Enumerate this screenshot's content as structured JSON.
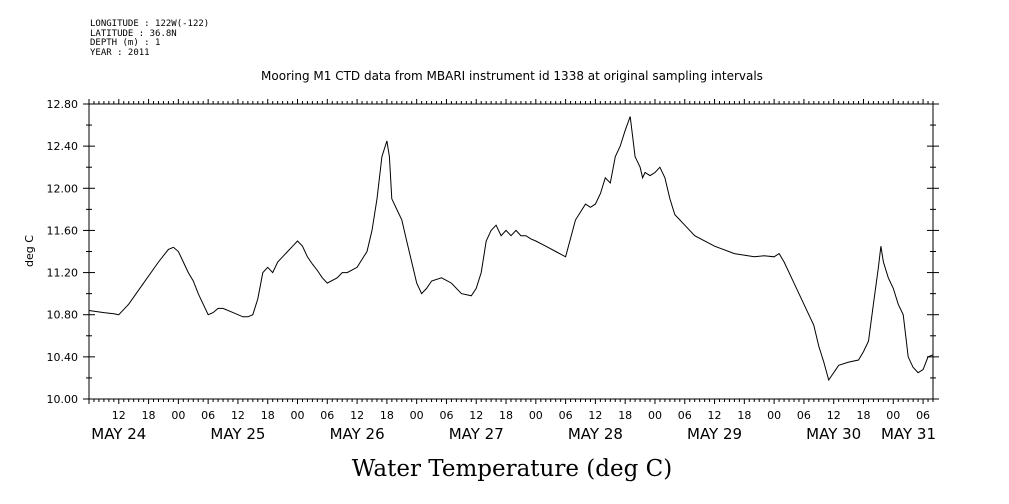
{
  "meta": {
    "longitude": "LONGITUDE : 122W(-122)",
    "latitude": "LATITUDE : 36.8N",
    "depth": "DEPTH (m) : 1",
    "year": "YEAR : 2011"
  },
  "chart_data": {
    "type": "line",
    "title": "Mooring M1 CTD data from MBARI instrument id 1338 at original sampling intervals",
    "xlabel": "Water Temperature (deg C)",
    "ylabel": "deg C",
    "ylim": [
      10.0,
      12.8
    ],
    "y_ticks": [
      "10.00",
      "10.40",
      "10.80",
      "11.20",
      "11.60",
      "12.00",
      "12.40",
      "12.80"
    ],
    "xlim": [
      "2011-05-24T06:00",
      "2011-05-31T08:00"
    ],
    "hour_labels": [
      "12",
      "18",
      "00",
      "06",
      "12",
      "18",
      "00",
      "06",
      "12",
      "18",
      "00",
      "06",
      "12",
      "18",
      "00",
      "06",
      "12",
      "18",
      "00",
      "06",
      "12",
      "18",
      "00",
      "06",
      "12",
      "18",
      "00",
      "06"
    ],
    "date_labels": [
      "MAY 24",
      "MAY 25",
      "MAY 26",
      "MAY 27",
      "MAY 28",
      "MAY 29",
      "MAY 30",
      "MAY 31"
    ],
    "grid": false,
    "series": [
      {
        "x": [
          "2011-05-24T06:00",
          "2011-05-24T09:00",
          "2011-05-24T11:00",
          "2011-05-24T12:00",
          "2011-05-24T14:00",
          "2011-05-24T17:00",
          "2011-05-24T20:00",
          "2011-05-24T22:00",
          "2011-05-24T23:00",
          "2011-05-25T00:00",
          "2011-05-25T01:00",
          "2011-05-25T02:00",
          "2011-05-25T03:00",
          "2011-05-25T04:00",
          "2011-05-25T05:00",
          "2011-05-25T06:00",
          "2011-05-25T07:00",
          "2011-05-25T08:00",
          "2011-05-25T09:00",
          "2011-05-25T11:00",
          "2011-05-25T13:00",
          "2011-05-25T14:00",
          "2011-05-25T15:00",
          "2011-05-25T16:00",
          "2011-05-25T17:00",
          "2011-05-25T18:00",
          "2011-05-25T19:00",
          "2011-05-25T20:00",
          "2011-05-25T21:00",
          "2011-05-25T22:00",
          "2011-05-25T23:00",
          "2011-05-26T00:00",
          "2011-05-26T01:00",
          "2011-05-26T02:00",
          "2011-05-26T03:00",
          "2011-05-26T04:00",
          "2011-05-26T05:00",
          "2011-05-26T06:00",
          "2011-05-26T08:00",
          "2011-05-26T09:00",
          "2011-05-26T10:00",
          "2011-05-26T12:00",
          "2011-05-26T14:00",
          "2011-05-26T15:00",
          "2011-05-26T16:00",
          "2011-05-26T17:00",
          "2011-05-26T18:00",
          "2011-05-26T18:30",
          "2011-05-26T19:00",
          "2011-05-26T20:00",
          "2011-05-26T21:00",
          "2011-05-26T22:00",
          "2011-05-26T23:00",
          "2011-05-27T00:00",
          "2011-05-27T01:00",
          "2011-05-27T02:00",
          "2011-05-27T03:00",
          "2011-05-27T05:00",
          "2011-05-27T07:00",
          "2011-05-27T09:00",
          "2011-05-27T11:00",
          "2011-05-27T12:00",
          "2011-05-27T13:00",
          "2011-05-27T14:00",
          "2011-05-27T15:00",
          "2011-05-27T16:00",
          "2011-05-27T17:00",
          "2011-05-27T18:00",
          "2011-05-27T19:00",
          "2011-05-27T20:00",
          "2011-05-27T21:00",
          "2011-05-27T22:00",
          "2011-05-27T23:00",
          "2011-05-28T00:00",
          "2011-05-28T02:00",
          "2011-05-28T04:00",
          "2011-05-28T06:00",
          "2011-05-28T08:00",
          "2011-05-28T10:00",
          "2011-05-28T11:00",
          "2011-05-28T12:00",
          "2011-05-28T13:00",
          "2011-05-28T14:00",
          "2011-05-28T15:00",
          "2011-05-28T16:00",
          "2011-05-28T17:00",
          "2011-05-28T18:00",
          "2011-05-28T19:00",
          "2011-05-28T20:00",
          "2011-05-28T21:00",
          "2011-05-28T21:30",
          "2011-05-28T22:00",
          "2011-05-28T23:00",
          "2011-05-29T00:00",
          "2011-05-29T01:00",
          "2011-05-29T02:00",
          "2011-05-29T03:00",
          "2011-05-29T04:00",
          "2011-05-29T05:00",
          "2011-05-29T06:00",
          "2011-05-29T08:00",
          "2011-05-29T12:00",
          "2011-05-29T16:00",
          "2011-05-29T20:00",
          "2011-05-29T22:00",
          "2011-05-30T00:00",
          "2011-05-30T01:00",
          "2011-05-30T02:00",
          "2011-05-30T04:00",
          "2011-05-30T06:00",
          "2011-05-30T08:00",
          "2011-05-30T09:00",
          "2011-05-30T10:00",
          "2011-05-30T11:00",
          "2011-05-30T13:00",
          "2011-05-30T15:00",
          "2011-05-30T17:00",
          "2011-05-30T18:00",
          "2011-05-30T19:00",
          "2011-05-30T20:00",
          "2011-05-30T21:00",
          "2011-05-30T21:30",
          "2011-05-30T22:00",
          "2011-05-30T23:00",
          "2011-05-31T00:00",
          "2011-05-31T01:00",
          "2011-05-31T02:00",
          "2011-05-31T03:00",
          "2011-05-31T04:00",
          "2011-05-31T05:00",
          "2011-05-31T06:00",
          "2011-05-31T07:00",
          "2011-05-31T08:00"
        ],
        "y": [
          10.84,
          10.82,
          10.81,
          10.8,
          10.9,
          11.1,
          11.3,
          11.42,
          11.44,
          11.4,
          11.3,
          11.2,
          11.12,
          11.0,
          10.9,
          10.8,
          10.82,
          10.86,
          10.86,
          10.82,
          10.78,
          10.78,
          10.8,
          10.95,
          11.2,
          11.25,
          11.2,
          11.3,
          11.35,
          11.4,
          11.45,
          11.5,
          11.45,
          11.35,
          11.28,
          11.22,
          11.15,
          11.1,
          11.15,
          11.2,
          11.2,
          11.25,
          11.4,
          11.6,
          11.9,
          12.3,
          12.45,
          12.3,
          11.9,
          11.8,
          11.7,
          11.5,
          11.3,
          11.1,
          11.0,
          11.05,
          11.12,
          11.15,
          11.1,
          11.0,
          10.98,
          11.05,
          11.2,
          11.5,
          11.6,
          11.65,
          11.55,
          11.6,
          11.55,
          11.6,
          11.55,
          11.55,
          11.52,
          11.5,
          11.45,
          11.4,
          11.35,
          11.7,
          11.85,
          11.82,
          11.85,
          11.95,
          12.1,
          12.05,
          12.3,
          12.4,
          12.55,
          12.68,
          12.3,
          12.2,
          12.1,
          12.15,
          12.12,
          12.15,
          12.2,
          12.1,
          11.9,
          11.75,
          11.7,
          11.65,
          11.55,
          11.45,
          11.38,
          11.35,
          11.36,
          11.35,
          11.38,
          11.3,
          11.1,
          10.9,
          10.7,
          10.5,
          10.35,
          10.18,
          10.32,
          10.35,
          10.37,
          10.45,
          10.55,
          10.9,
          11.25,
          11.45,
          11.3,
          11.15,
          11.05,
          10.9,
          10.8,
          10.4,
          10.3,
          10.25,
          10.28,
          10.4,
          10.42
        ]
      }
    ]
  }
}
